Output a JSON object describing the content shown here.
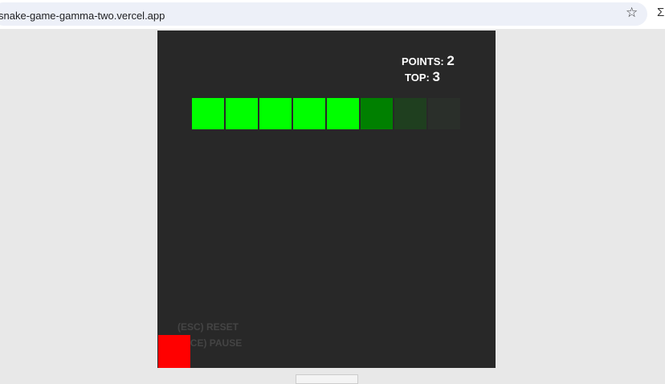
{
  "browser": {
    "url": "snake-game-gamma-two.vercel.app",
    "star_icon": "star-icon"
  },
  "game": {
    "points_label": "POINTS:",
    "points": "2",
    "top_label": "TOP:",
    "top": "3",
    "hints": {
      "reset": "(ESC) RESET",
      "pause": "(SPACE) PAUSE"
    },
    "snake_colors": [
      "#00ff00",
      "#00ff00",
      "#00ff00",
      "#00ff00",
      "#00ff00",
      "#008000",
      "#1f3f1f",
      "#2a2f2a"
    ],
    "food_color": "#ff0000"
  }
}
